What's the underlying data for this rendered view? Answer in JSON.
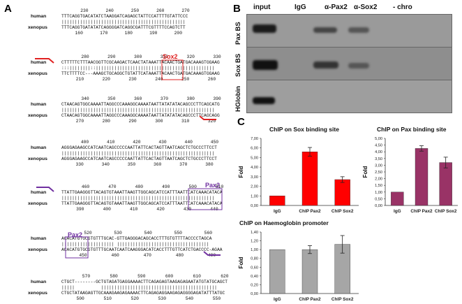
{
  "panels": {
    "a": "A",
    "b": "B",
    "c": "C"
  },
  "species": {
    "human": "human",
    "xenopus": "xenopus"
  },
  "alignment": [
    {
      "top_nums": [
        "230",
        "240",
        "250",
        "260",
        "270"
      ],
      "human": "TTTCAGGTGACATATCTAAGGATCAGAGCTATTCCATTTTGTATTCCC",
      "bars": "|||||||||||||||||||||||||||||||||||||||||||||||",
      "xenopus": "TTTCAGGTGATATATCAGGGGATCAGGCGATTTCGTTTTCCAGTCTT",
      "bot_nums": [
        "160",
        "170",
        "180",
        "190",
        "200"
      ]
    },
    {
      "top_nums": [
        "280",
        "290",
        "300",
        "310",
        "320",
        "330"
      ],
      "human": "CTTTTTCTTTAACGGTTCGCAAGACTCAACTATAAATTACAACTGATGACAAAGTGGAAG",
      "bars": ":::||||||||::|||||||||||||||||||||||||||||||||||||||||||||",
      "xenopus": "TTCTTTTCC---AAAGCTGCAGGCTGTATTCATAAATTACAACTGATGACAAAGTGGAAG",
      "bot_nums": [
        "210",
        "220",
        "230",
        "240",
        "250",
        "260"
      ]
    },
    {
      "top_nums": [
        "340",
        "350",
        "360",
        "370",
        "380",
        "390"
      ],
      "human": "CTAACAGTGGCAAAATTAGGCCCAAAGGCAAAATAATTATATATACAGCCCTTCAGCATG",
      "bars": "||||||||||||||||||||||||||||||||||||||||||||||||||||||||||",
      "xenopus": "CTAACAGTGGCAAAATTAGGCCCAAAGGCAAAATAATTATATATACAGCCCTTCAGCAGG",
      "bot_nums": [
        "270",
        "280",
        "290",
        "300",
        "310",
        "320"
      ]
    },
    {
      "top_nums": [
        "400",
        "410",
        "420",
        "430",
        "440",
        "450"
      ],
      "human": "AGGGAGAAGCCATCAATCAGCCCCCAATTATTCACTAGTTAATCAGCTCTGCCCTTCCT",
      "bars": "||||||||||||||||||||||||||||||||||||||||||||||||||||||||||",
      "xenopus": "AGGGAGAAGCCATCAATCAGCCCCCAATTATTCACTAGTTAATCAGCTCTGCCCTTCCT",
      "bot_nums": [
        "330",
        "340",
        "350",
        "360",
        "370",
        "380"
      ]
    },
    {
      "top_nums": [
        "460",
        "470",
        "480",
        "490",
        "500",
        "510"
      ],
      "human": "TTATTGAAGGGTTACAGTGTAAATTAAGTTGGCAGCATCCATTTAATTCATCAAACATACA",
      "bars": "||||||||||||||||||||||||||||||||||||||||||||||||||||||||||",
      "xenopus": "TTATTGAAGGGTTACAGTGTAAATTAAGTTGGCAGCATCCATTTAATTCATCAAACATACA",
      "bot_nums": [
        "390",
        "400",
        "410",
        "420",
        "430",
        "440"
      ]
    },
    {
      "top_nums": [
        "520",
        "530",
        "540",
        "550",
        "560"
      ],
      "human": "ACACATGTGCGTGTTTGCAC-GTTGAGGGACAGCACCTTTGTGTTTTACCCCTAGCA",
      "bars": "|||||||||||||||||||| |||||||||||||||||||||||||||||||||||",
      "xenopus": "ACACATGTGCGTGTTTGCAATCAATCAAGGGACATCACCTTTGTTCATCTGACCCC-AGAA",
      "bot_nums": [
        "450",
        "460",
        "470",
        "480",
        "490"
      ]
    },
    {
      "top_nums": [
        "570",
        "580",
        "590",
        "600",
        "610",
        "620"
      ],
      "human": "CTGCT--------GCTGTAGATGAGGAAAACTTCAGAGAGTAAGAGAGAATATGTATGCAGCT",
      "bars": "|||||          ||||||||||||||||||||||||||||||||||||||||||||",
      "xenopus": "CTGCTATAAGAGTTGCAAAGAAGAGAAAACTTCAGAGAGGAAGAGAGGGGAGATATTTATGC",
      "bot_nums": [
        "500",
        "510",
        "520",
        "530",
        "540",
        "550"
      ]
    }
  ],
  "boxes": {
    "sox2_a": "Sox2",
    "pax2_a": "Pax2",
    "pax2_b": "Pax2"
  },
  "gel": {
    "columns": [
      "input",
      "IgG",
      "α-Pax2",
      "α-Sox2",
      "- chro"
    ],
    "rows": [
      "Pax BS",
      "Sox BS",
      "HGlobin"
    ]
  },
  "chart_data": [
    {
      "type": "bar",
      "title": "ChIP on Sox binding site",
      "categories": [
        "IgG",
        "ChIP Pax2",
        "ChIP Sox2"
      ],
      "values": [
        1.0,
        5.6,
        2.7
      ],
      "errors": [
        0,
        0.45,
        0.3
      ],
      "ylabel": "Fold",
      "ylim": [
        0,
        7
      ],
      "yticks": [
        "0,00",
        "1,00",
        "2,00",
        "3,00",
        "4,00",
        "5,00",
        "6,00",
        "7,00"
      ],
      "ytick_values": [
        0,
        1,
        2,
        3,
        4,
        5,
        6,
        7
      ],
      "color": "#ff0000"
    },
    {
      "type": "bar",
      "title": "ChIP on Pax binding site",
      "categories": [
        "IgG",
        "ChIP Pax2",
        "ChIP Sox2"
      ],
      "values": [
        1.0,
        4.25,
        3.2
      ],
      "errors": [
        0,
        0.2,
        0.4
      ],
      "ylabel": "Fold",
      "ylim": [
        0,
        5
      ],
      "yticks": [
        "0,00",
        "0,50",
        "1,00",
        "1,50",
        "2,00",
        "2,50",
        "3,00",
        "3,50",
        "4,00",
        "4,50",
        "5,00"
      ],
      "ytick_values": [
        0,
        0.5,
        1,
        1.5,
        2,
        2.5,
        3,
        3.5,
        4,
        4.5,
        5
      ],
      "color": "#993366"
    },
    {
      "type": "bar",
      "title": "ChIP on Haemoglobin promoter",
      "categories": [
        "IgG",
        "ChIP Pax2",
        "ChIP Sox2"
      ],
      "values": [
        1.0,
        1.0,
        1.12
      ],
      "errors": [
        0,
        0.09,
        0.2
      ],
      "ylabel": "Fold",
      "ylim": [
        0,
        1.4
      ],
      "yticks": [
        "0,00",
        "0,20",
        "0,40",
        "0,60",
        "0,80",
        "1,00",
        "1,20",
        "1,40"
      ],
      "ytick_values": [
        0,
        0.2,
        0.4,
        0.6,
        0.8,
        1.0,
        1.2,
        1.4
      ],
      "color": "#a6a6a6"
    }
  ]
}
